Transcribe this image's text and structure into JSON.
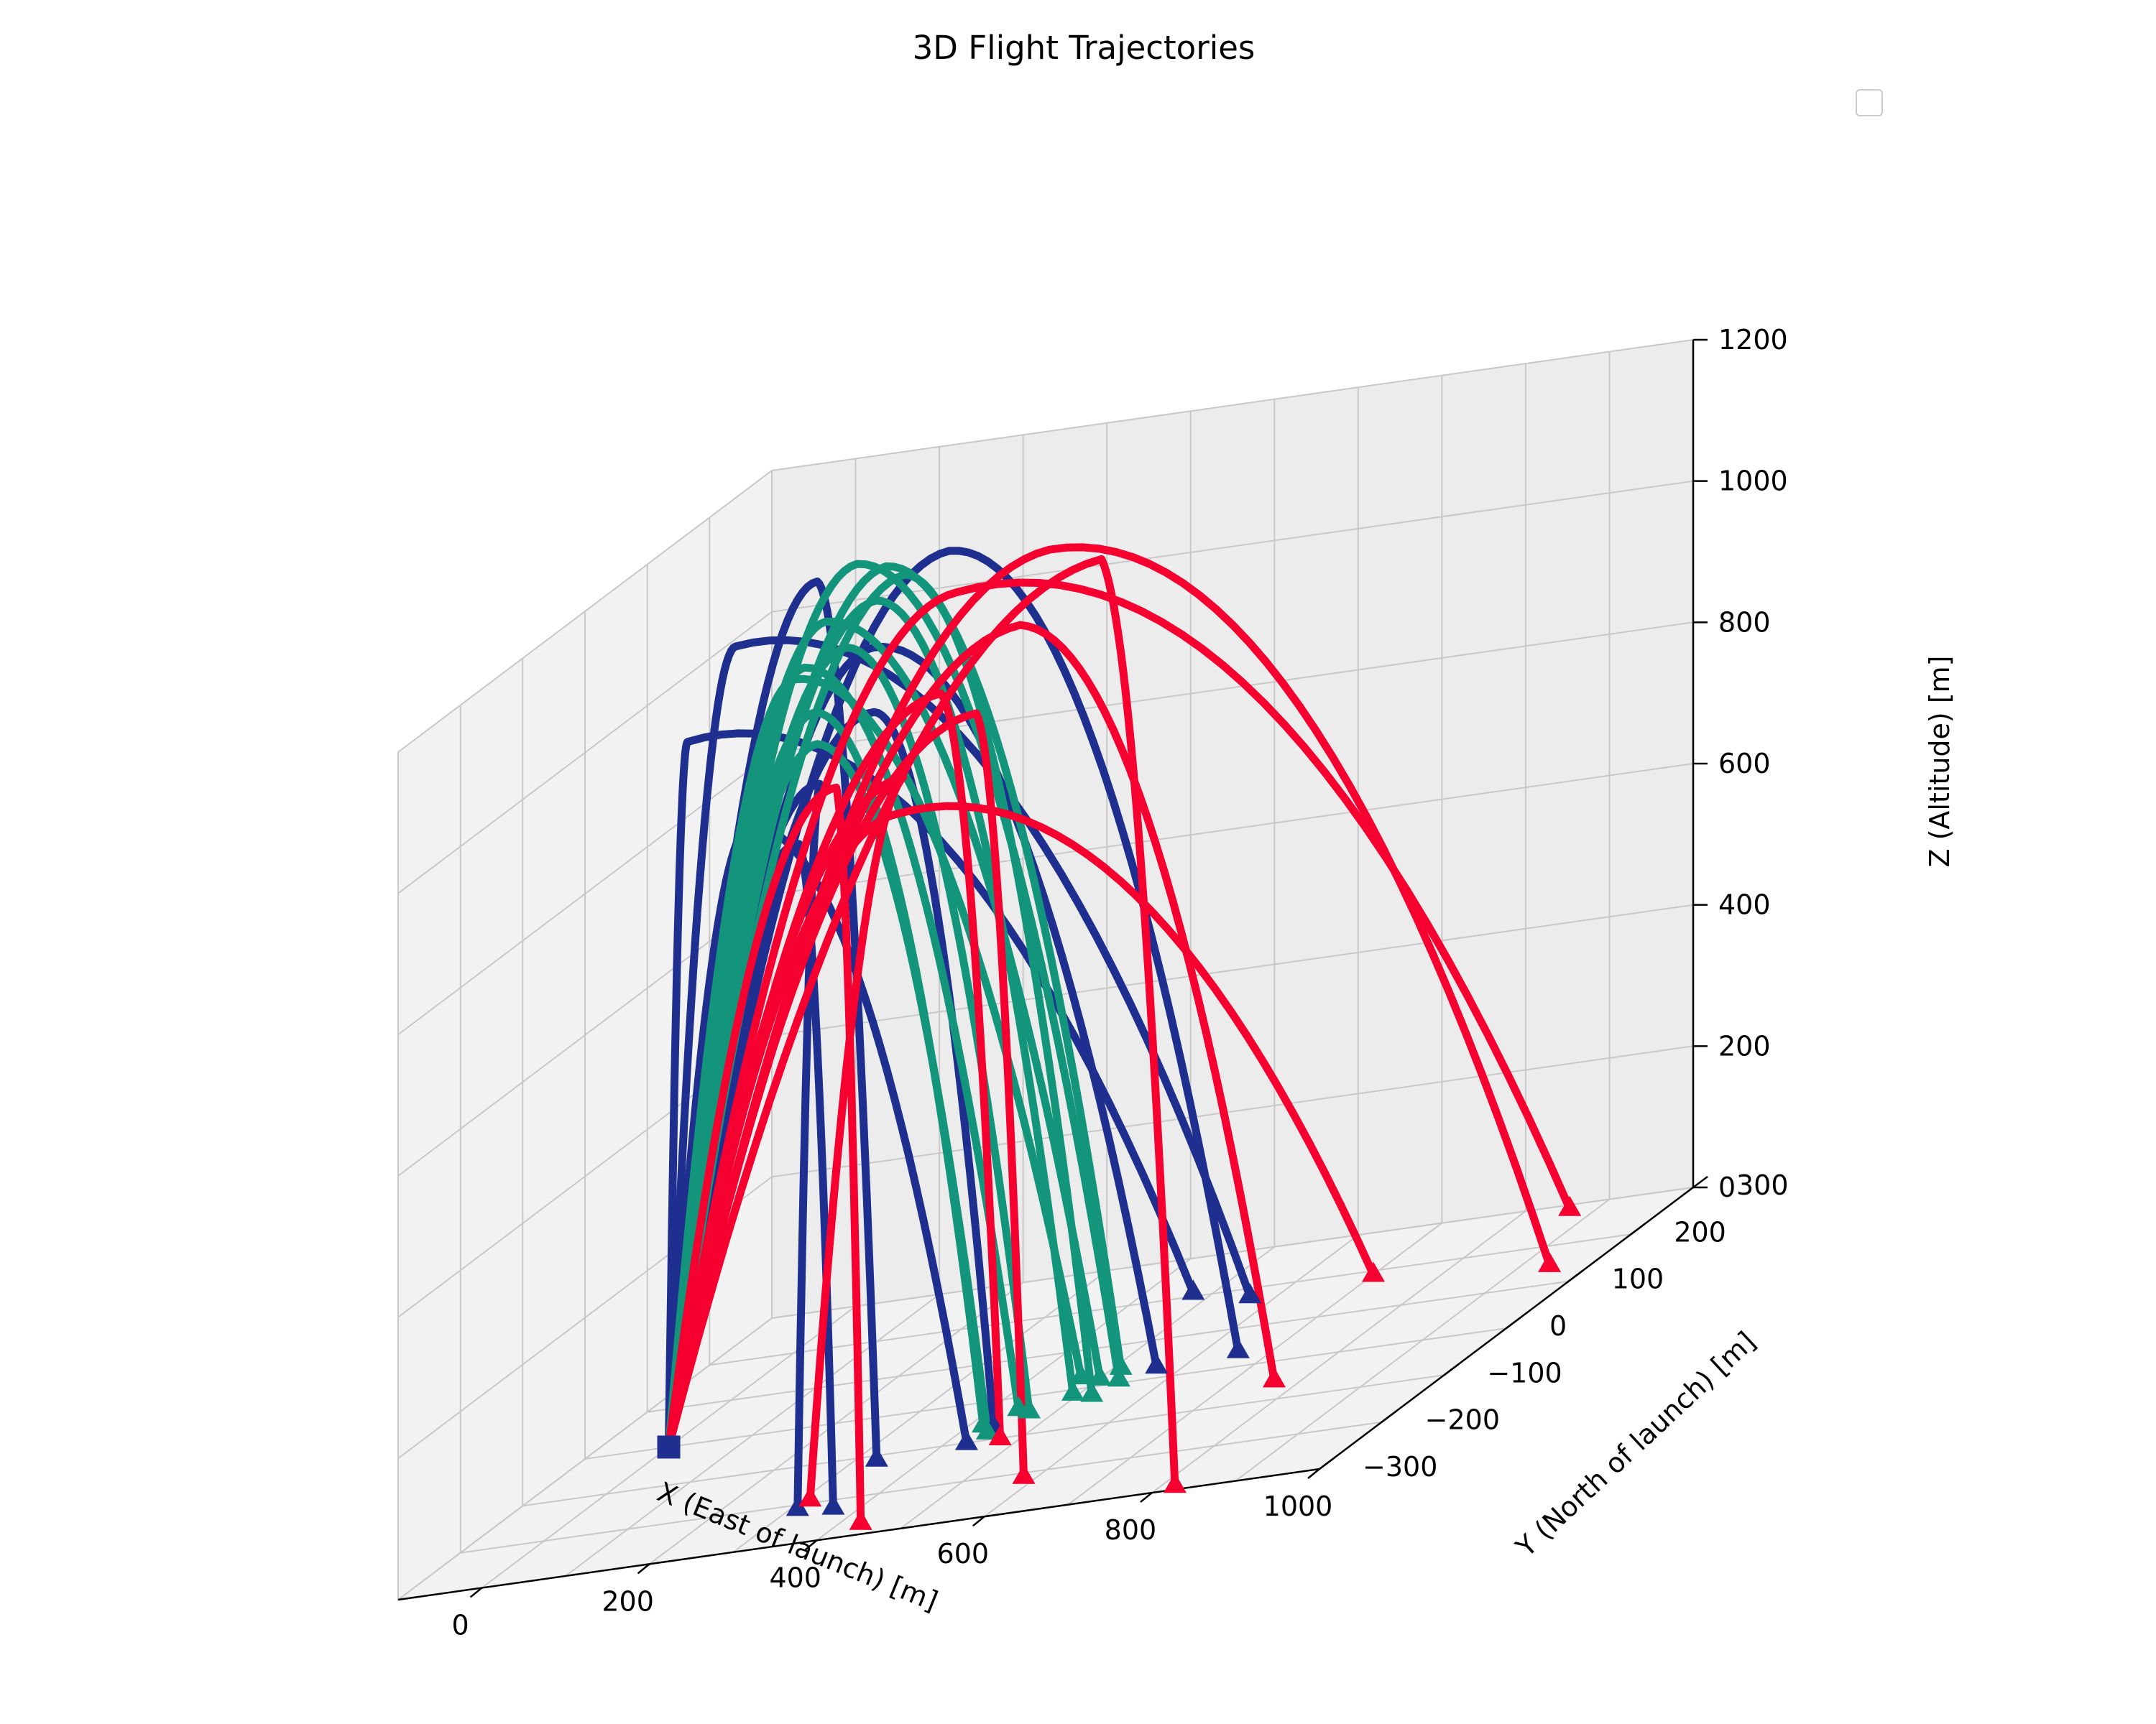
{
  "chart_data": {
    "type": "line",
    "projection": "3d",
    "title": "3D Flight Trajectories",
    "xlabel": "X (East of launch) [m]",
    "ylabel": "Y (North of launch) [m]",
    "zlabel": "Z (Altitude) [m]",
    "xlim": [
      -100,
      1000
    ],
    "ylim": [
      -300,
      300
    ],
    "zlim": [
      0,
      1200
    ],
    "x_ticks": [
      "0",
      "200",
      "400",
      "600",
      "800",
      "1000"
    ],
    "y_ticks": [
      "−300",
      "−200",
      "−100",
      "0",
      "100",
      "200",
      "300"
    ],
    "z_ticks": [
      "0",
      "200",
      "400",
      "600",
      "800",
      "1000",
      "1200"
    ],
    "grid": true,
    "legend": {
      "placement": "top-right",
      "entries": []
    },
    "launch_point": {
      "x": 0,
      "y": 0,
      "z": 0,
      "marker": "square",
      "color": "#1f2f8f"
    },
    "groups": [
      {
        "color": "#1f2f8f",
        "trajectories": [
          {
            "apex": [
              30,
              -10,
              1000
            ],
            "land": [
              470,
              210,
              0
            ]
          },
          {
            "apex": [
              80,
              0,
              1120
            ],
            "land": [
              560,
              180,
              0
            ]
          },
          {
            "apex": [
              120,
              -30,
              880
            ],
            "land": [
              430,
              -100,
              0
            ]
          },
          {
            "apex": [
              170,
              10,
              1190
            ],
            "land": [
              330,
              -110,
              0
            ]
          },
          {
            "apex": [
              230,
              20,
              1080
            ],
            "land": [
              560,
              30,
              0
            ]
          },
          {
            "apex": [
              210,
              -40,
              930
            ],
            "land": [
              310,
              -210,
              0
            ]
          },
          {
            "apex": [
              290,
              60,
              1180
            ],
            "land": [
              650,
              40,
              0
            ]
          },
          {
            "apex": [
              200,
              -60,
              860
            ],
            "land": [
              360,
              -220,
              0
            ]
          },
          {
            "apex": [
              260,
              -20,
              1010
            ],
            "land": [
              440,
              -70,
              0
            ]
          }
        ]
      },
      {
        "color": "#12957a",
        "trajectories": [
          {
            "apex": [
              120,
              40,
              1040
            ],
            "land": [
              470,
              30,
              0
            ]
          },
          {
            "apex": [
              150,
              50,
              1110
            ],
            "land": [
              500,
              20,
              0
            ]
          },
          {
            "apex": [
              180,
              60,
              1180
            ],
            "land": [
              530,
              10,
              0
            ]
          },
          {
            "apex": [
              200,
              80,
              1160
            ],
            "land": [
              510,
              40,
              0
            ]
          },
          {
            "apex": [
              140,
              30,
              1060
            ],
            "land": [
              440,
              -30,
              0
            ]
          },
          {
            "apex": [
              160,
              20,
              1000
            ],
            "land": [
              420,
              -60,
              0
            ]
          },
          {
            "apex": [
              190,
              30,
              1080
            ],
            "land": [
              460,
              -40,
              0
            ]
          },
          {
            "apex": [
              210,
              50,
              1130
            ],
            "land": [
              490,
              -10,
              0
            ]
          },
          {
            "apex": [
              230,
              70,
              1150
            ],
            "land": [
              520,
              -20,
              0
            ]
          },
          {
            "apex": [
              170,
              10,
              960
            ],
            "land": [
              440,
              -80,
              0
            ]
          }
        ]
      },
      {
        "color": "#f5002f",
        "trajectories": [
          {
            "apex": [
              300,
              60,
              1120
            ],
            "land": [
              860,
              290,
              0
            ]
          },
          {
            "apex": [
              380,
              100,
              1140
            ],
            "land": [
              940,
              150,
              0
            ]
          },
          {
            "apex": [
              360,
              80,
              1050
            ],
            "land": [
              760,
              -50,
              0
            ]
          },
          {
            "apex": [
              420,
              130,
              1100
            ],
            "land": [
              820,
              -290,
              0
            ]
          },
          {
            "apex": [
              330,
              50,
              950
            ],
            "land": [
              580,
              -210,
              0
            ]
          },
          {
            "apex": [
              250,
              40,
              880
            ],
            "land": [
              310,
              -190,
              0
            ]
          },
          {
            "apex": [
              260,
              20,
              840
            ],
            "land": [
              700,
              190,
              0
            ]
          },
          {
            "apex": [
              200,
              0,
              900
            ],
            "land": [
              430,
              -270,
              0
            ]
          },
          {
            "apex": [
              280,
              60,
              980
            ],
            "land": [
              470,
              -100,
              0
            ]
          }
        ]
      }
    ]
  }
}
